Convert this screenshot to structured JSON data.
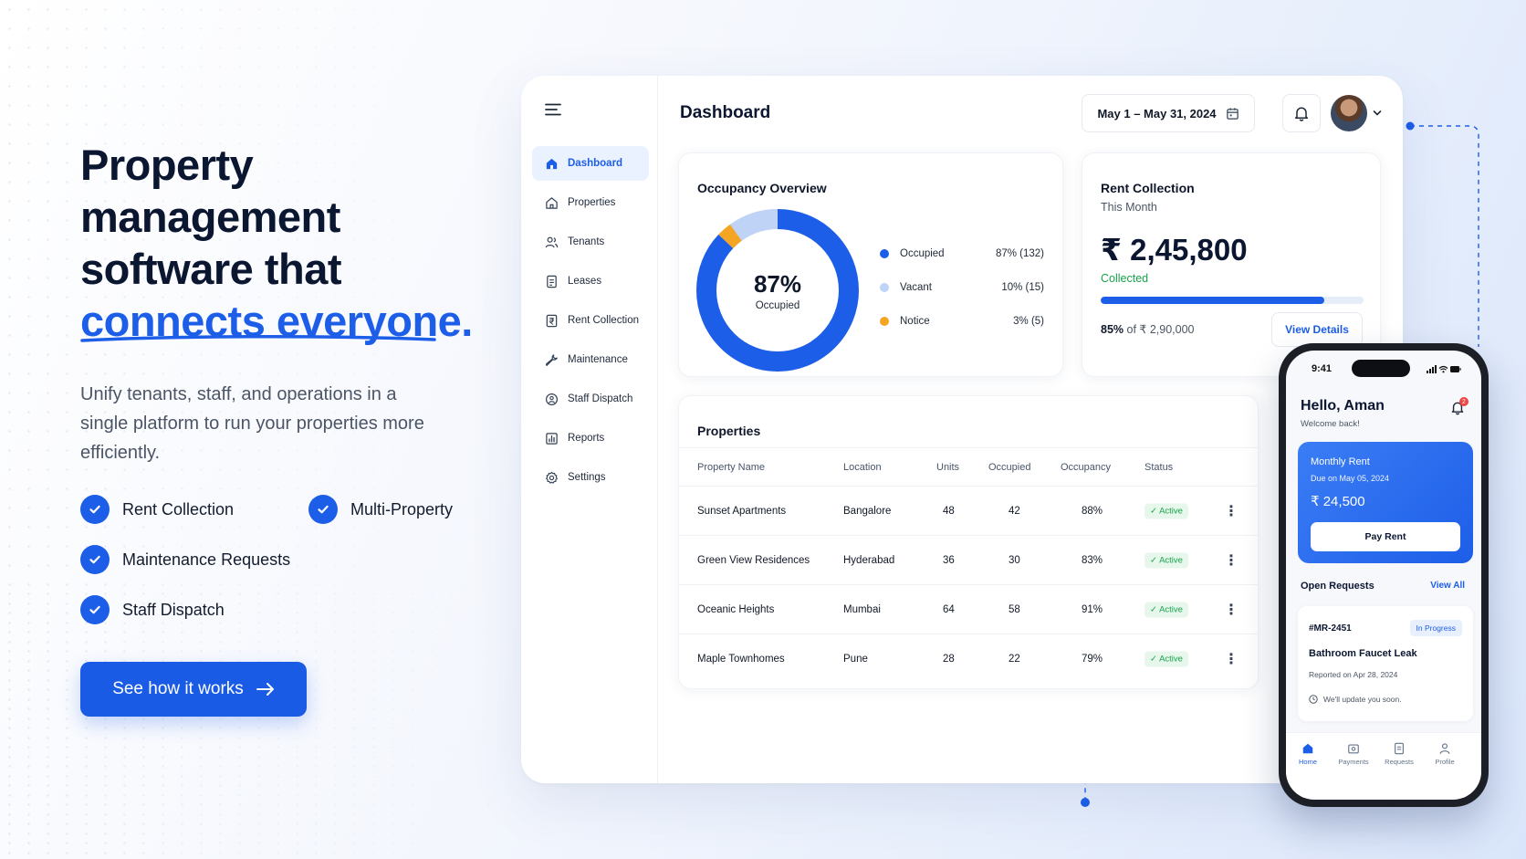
{
  "hero": {
    "title_line1": "Property",
    "title_line2": "management",
    "title_line3": "software that",
    "title_accent": "connects everyone.",
    "subtitle": "Unify tenants, staff, and operations in a single platform to run your properties more efficiently.",
    "features": [
      "Rent Collection",
      "Multi-Property",
      "Maintenance Requests",
      "Staff Dispatch"
    ],
    "cta_label": "See how it works"
  },
  "colors": {
    "accent": "#1d5ee8",
    "success": "#16a34a",
    "warning": "#f5a524",
    "vacant": "#bfd3f7",
    "notification": "#ef4444"
  },
  "sidebar": {
    "items": [
      {
        "label": "Dashboard",
        "icon": "home-icon",
        "active": true
      },
      {
        "label": "Properties",
        "icon": "building-icon"
      },
      {
        "label": "Tenants",
        "icon": "users-icon"
      },
      {
        "label": "Leases",
        "icon": "document-icon"
      },
      {
        "label": "Rent Collection",
        "icon": "rupee-receipt-icon"
      },
      {
        "label": "Maintenance",
        "icon": "wrench-icon"
      },
      {
        "label": "Staff Dispatch",
        "icon": "dispatch-icon"
      },
      {
        "label": "Reports",
        "icon": "chart-icon"
      },
      {
        "label": "Settings",
        "icon": "gear-icon"
      }
    ]
  },
  "header": {
    "title": "Dashboard",
    "date_range": "May 1 – May 31, 2024"
  },
  "occupancy": {
    "title": "Occupancy Overview",
    "center_value": "87%",
    "center_label": "Occupied",
    "legend": [
      {
        "label": "Occupied",
        "value": "87% (132)",
        "percent": 87,
        "color": "#1d5ee8"
      },
      {
        "label": "Vacant",
        "value": "10% (15)",
        "percent": 10,
        "color": "#bfd3f7"
      },
      {
        "label": "Notice",
        "value": "3% (5)",
        "percent": 3,
        "color": "#f5a524"
      }
    ]
  },
  "rent": {
    "title": "Rent Collection",
    "subtitle": "This Month",
    "amount": "₹ 2,45,800",
    "status": "Collected",
    "progress_percent": 85,
    "footer_percent": "85%",
    "footer_rest": " of ₹ 2,90,000",
    "view_label": "View Details"
  },
  "properties": {
    "title": "Properties",
    "columns": [
      "Property Name",
      "Location",
      "Units",
      "Occupied",
      "Occupancy",
      "Status"
    ],
    "rows": [
      {
        "name": "Sunset Apartments",
        "location": "Bangalore",
        "units": "48",
        "occupied": "42",
        "occupancy": "88%",
        "status": "✓ Active"
      },
      {
        "name": "Green View Residences",
        "location": "Hyderabad",
        "units": "36",
        "occupied": "30",
        "occupancy": "83%",
        "status": "✓ Active"
      },
      {
        "name": "Oceanic Heights",
        "location": "Mumbai",
        "units": "64",
        "occupied": "58",
        "occupancy": "91%",
        "status": "✓ Active"
      },
      {
        "name": "Maple Townhomes",
        "location": "Pune",
        "units": "28",
        "occupied": "22",
        "occupancy": "79%",
        "status": "✓ Active"
      }
    ]
  },
  "phone": {
    "time": "9:41",
    "greeting": "Hello, Aman",
    "welcome": "Welcome back!",
    "bell_count": "2",
    "rent_title": "Monthly Rent",
    "rent_due": "Due on May 05, 2024",
    "rent_amount": "₹ 24,500",
    "pay_label": "Pay Rent",
    "open_requests": "Open Requests",
    "view_all": "View All",
    "request": {
      "id": "#MR-2451",
      "status": "In Progress",
      "title": "Bathroom Faucet Leak",
      "reported": "Reported on Apr 28, 2024",
      "update": "We'll update you soon."
    },
    "tabs": [
      "Home",
      "Payments",
      "Requests",
      "Profile"
    ]
  }
}
